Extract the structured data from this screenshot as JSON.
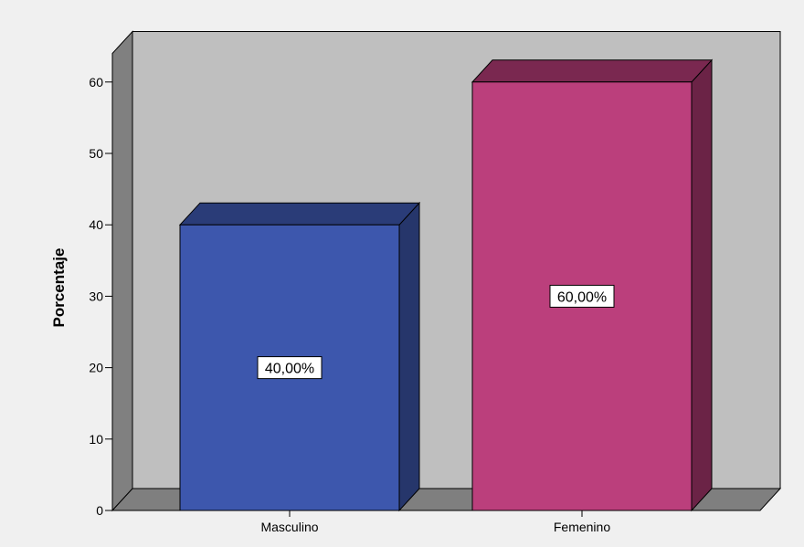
{
  "chart_data": {
    "type": "bar",
    "categories": [
      "Masculino",
      "Femenino"
    ],
    "values": [
      40,
      60
    ],
    "data_labels": [
      "40,00%",
      "60,00%"
    ],
    "ylabel": "Porcentaje",
    "xlabel": "",
    "title": "",
    "ylim": [
      0,
      64
    ],
    "yticks": [
      0,
      10,
      20,
      30,
      40,
      50,
      60
    ],
    "grid": false,
    "legend": "none",
    "three_d": true,
    "colors": {
      "bars": [
        "#3d57ad",
        "#bb3f7c"
      ],
      "bar_tops": [
        "#2a3c78",
        "#7a2850"
      ],
      "bar_sides": [
        "#26366b",
        "#6b2346"
      ],
      "back_wall": "#bfbfbf",
      "left_wall": "#808080",
      "floor": "#7f7f7f",
      "background": "#f0f0f0"
    }
  }
}
